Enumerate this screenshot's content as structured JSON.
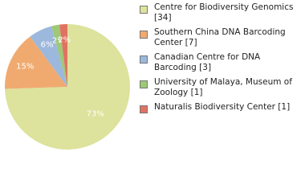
{
  "chart_data": {
    "type": "pie",
    "categories": [
      "Centre for Biodiversity Genomics [34]",
      "Southern China DNA Barcoding Center [7]",
      "Canadian Centre for DNA Barcoding [3]",
      "University of Malaya, Museum of Zoology [1]",
      "Naturalis Biodiversity Center [1]"
    ],
    "values": [
      73,
      15,
      6,
      2,
      2
    ],
    "value_labels": [
      "73%",
      "15%",
      "6%",
      "2%",
      "2%"
    ],
    "colors": [
      "#dde29c",
      "#f0aa70",
      "#9cb8dc",
      "#9fc877",
      "#e07262"
    ]
  }
}
